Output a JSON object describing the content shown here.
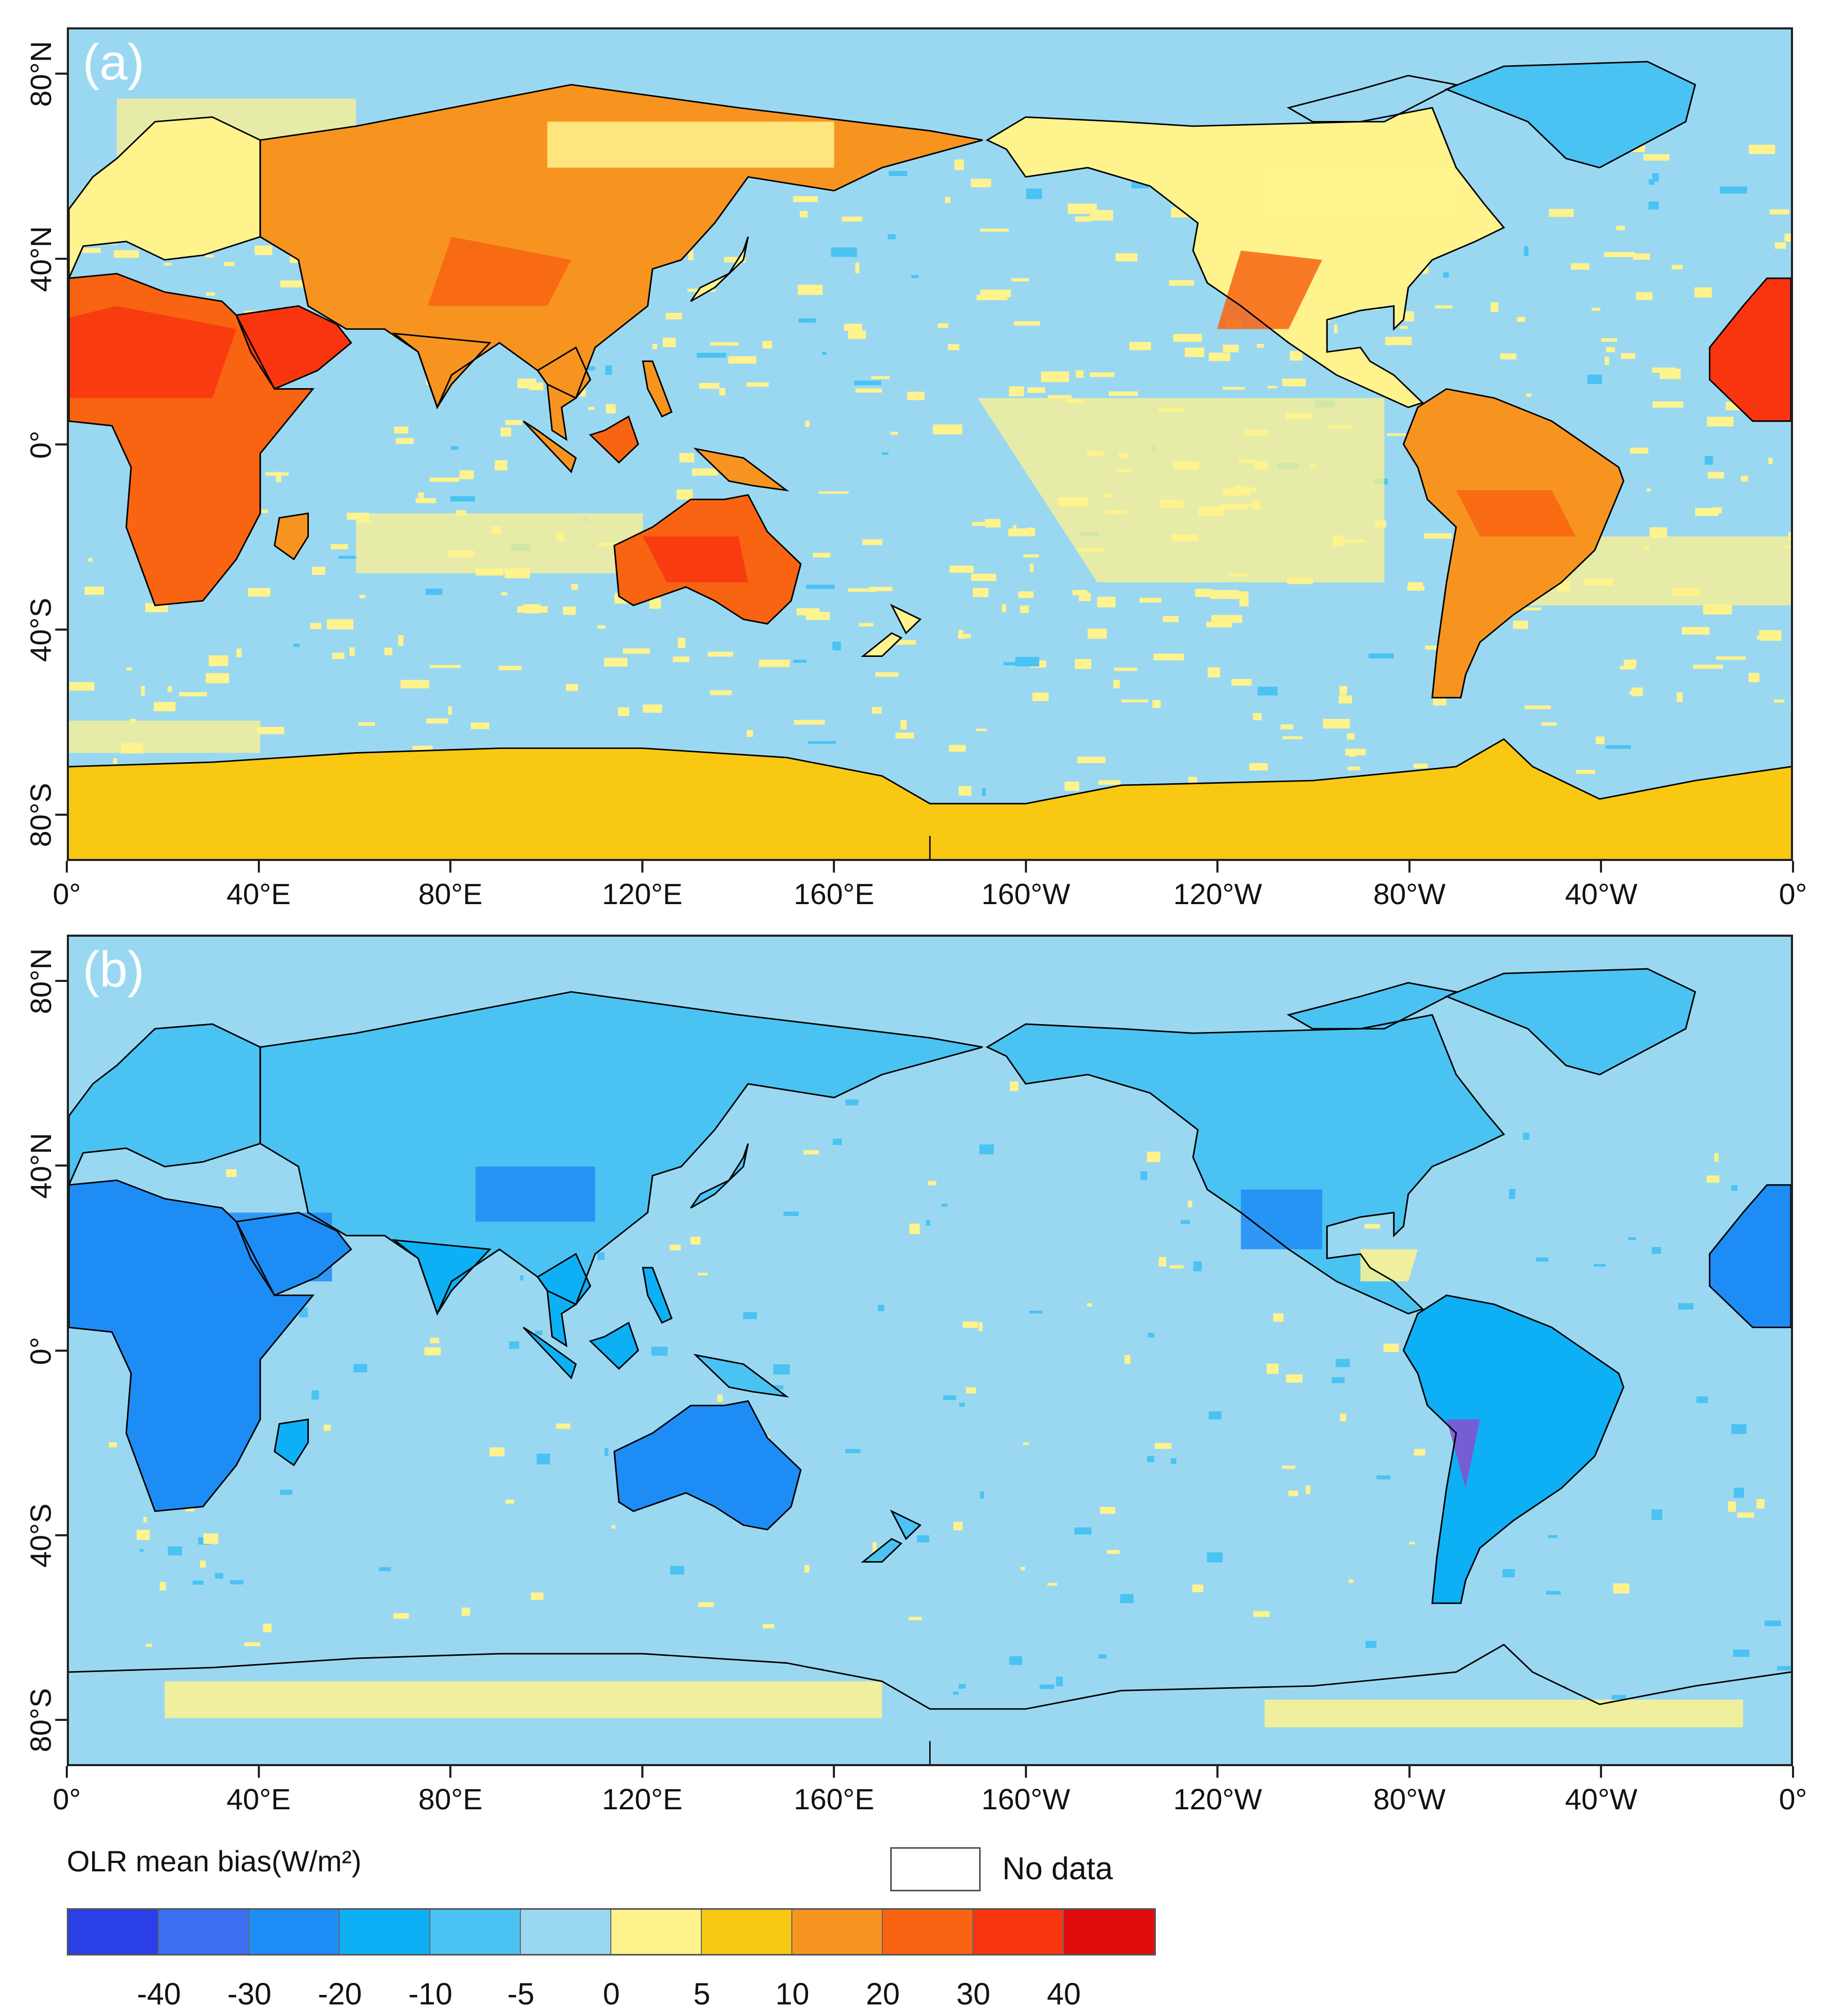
{
  "panels": [
    {
      "label": "(a)",
      "pattern": "warm"
    },
    {
      "label": "(b)",
      "pattern": "cool"
    }
  ],
  "axes": {
    "lat_ticks": [
      "80°N",
      "40°N",
      "0°",
      "40°S",
      "80°S"
    ],
    "lon_ticks": [
      "0°",
      "40°E",
      "80°E",
      "120°E",
      "160°E",
      "160°W",
      "120°W",
      "80°W",
      "40°W",
      "0°"
    ]
  },
  "legend": {
    "title": "OLR mean bias(W/m²)",
    "no_data_label": "No data",
    "colors": [
      "#2a3fe6",
      "#3a6ff0",
      "#1e8cf5",
      "#0eb0f5",
      "#4bc3f2",
      "#9ad8f2",
      "#fff38e",
      "#f8c813",
      "#f79420",
      "#f86412",
      "#f93510",
      "#e00c0c"
    ],
    "bin_labels": [
      "-40",
      "-30",
      "-20",
      "-10",
      "-5",
      "0",
      "5",
      "10",
      "20",
      "30",
      "40"
    ]
  },
  "map_colors": {
    "ocean": "#9ad8f2",
    "land_warm": "#f79420",
    "land_hot": "#f86412",
    "land_hotter": "#f93510",
    "mild_pos": "#fff38e",
    "ice_pos": "#f8c813",
    "land_cool": "#4bc3f2",
    "land_cold": "#0eb0f5",
    "land_colder": "#1e8cf5",
    "coast": "#000000"
  }
}
